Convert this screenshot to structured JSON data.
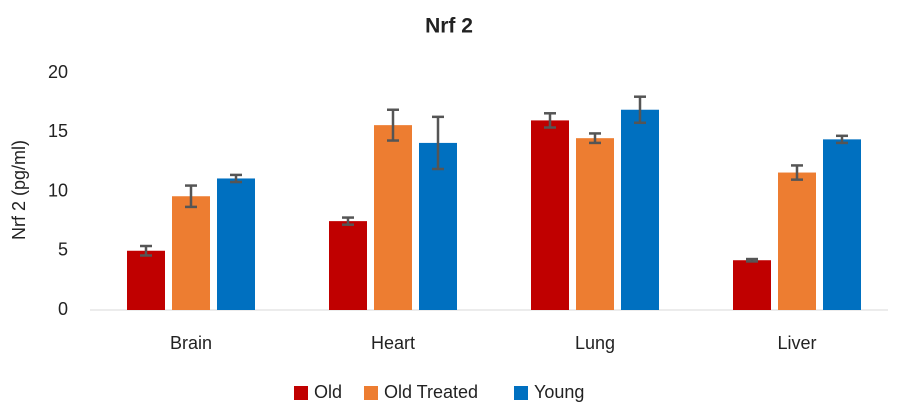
{
  "chart_data": {
    "type": "bar",
    "title": "Nrf 2",
    "y_label": "Nrf 2 (pg/ml)",
    "categories": [
      "Brain",
      "Heart",
      "Lung",
      "Liver"
    ],
    "series": [
      {
        "name": "Old",
        "color": "#c00000",
        "values": [
          5.0,
          7.5,
          16.0,
          4.2
        ],
        "errors": [
          0.4,
          0.3,
          0.6,
          0.1
        ]
      },
      {
        "name": "Old Treated",
        "color": "#ed7d31",
        "values": [
          9.6,
          15.6,
          14.5,
          11.6
        ],
        "errors": [
          0.9,
          1.3,
          0.4,
          0.6
        ]
      },
      {
        "name": "Young",
        "color": "#0070c0",
        "values": [
          11.1,
          14.1,
          16.9,
          14.4
        ],
        "errors": [
          0.3,
          2.2,
          1.1,
          0.3
        ]
      }
    ],
    "ylim": [
      0,
      20
    ],
    "yticks": [
      0,
      5,
      10,
      15,
      20
    ],
    "grid": false,
    "legend": "bottom"
  }
}
